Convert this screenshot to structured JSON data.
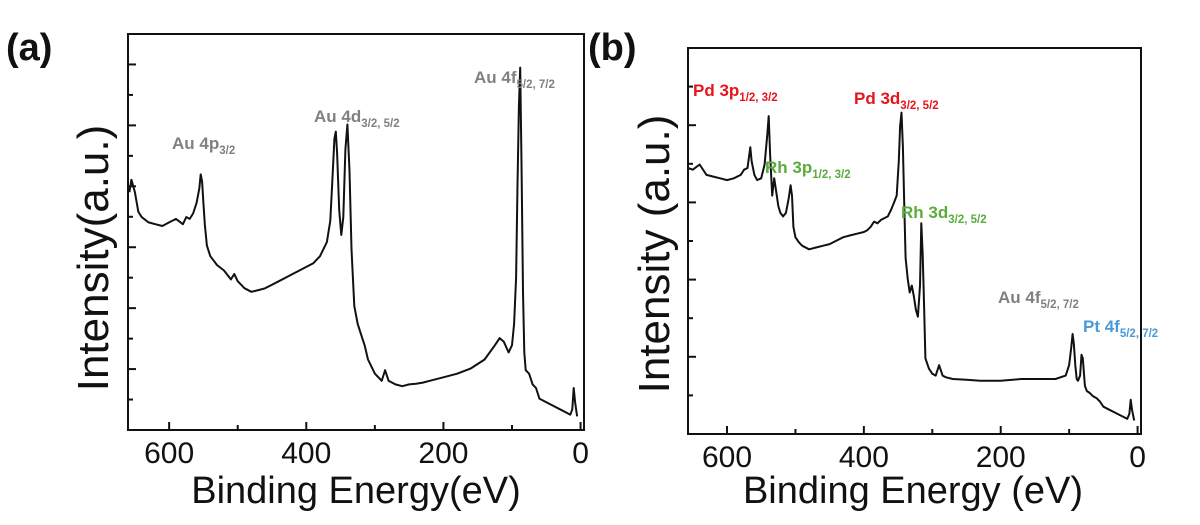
{
  "colors": {
    "line": "#111111",
    "gray": "#808080",
    "red": "#e8141c",
    "green": "#5aac3c",
    "blue": "#4a9ad6"
  },
  "chart_data": [
    {
      "type": "line",
      "panel_label": "(a)",
      "xlabel": "Binding Energy(eV)",
      "ylabel": "Intensity(a.u.)",
      "xlim": [
        660,
        -5
      ],
      "ylim": [
        0,
        100
      ],
      "xticks": [
        600,
        400,
        200,
        0
      ],
      "xtick_labels": [
        "600",
        "400",
        "200",
        "0"
      ],
      "grid": false,
      "series": [
        {
          "x": [
            658,
            655,
            650,
            645,
            640,
            630,
            620,
            610,
            600,
            590,
            580,
            575,
            570,
            565,
            560,
            556,
            554,
            552,
            550,
            548,
            545,
            540,
            530,
            520,
            510,
            505,
            500,
            495,
            490,
            480,
            470,
            460,
            450,
            440,
            430,
            420,
            410,
            400,
            390,
            380,
            370,
            365,
            362,
            359,
            357,
            355,
            352,
            349,
            346,
            343,
            340,
            337,
            334,
            330,
            325,
            320,
            315,
            310,
            300,
            290,
            285,
            280,
            270,
            260,
            250,
            240,
            230,
            220,
            200,
            180,
            160,
            140,
            125,
            118,
            112,
            105,
            100,
            97,
            94,
            92,
            90,
            88,
            86,
            84,
            82,
            80,
            75,
            70,
            65,
            60,
            50,
            40,
            30,
            20,
            15,
            12,
            10,
            8,
            5
          ],
          "y": [
            64,
            67.5,
            64,
            58.5,
            57,
            55.5,
            55,
            54.5,
            55.5,
            56.5,
            55,
            57,
            56.5,
            58,
            61,
            65,
            69,
            67,
            61,
            55,
            49,
            46,
            43.5,
            42,
            39.5,
            41,
            39,
            38,
            37,
            36,
            36.5,
            37,
            38,
            39,
            40,
            41,
            42,
            43,
            44,
            46,
            50,
            56,
            67,
            79,
            81,
            75,
            59,
            52,
            57,
            76,
            83,
            70,
            48,
            32,
            27,
            24,
            21,
            17,
            13,
            11,
            14,
            11,
            10,
            9.5,
            10,
            10.2,
            10.5,
            11,
            12,
            13,
            14.5,
            17,
            21,
            23,
            22,
            19,
            21,
            27,
            40,
            66,
            88,
            99,
            70,
            36,
            19,
            14,
            13,
            10,
            9,
            6,
            5,
            4,
            3,
            2,
            1.5,
            3,
            9,
            5,
            1
          ]
        }
      ],
      "annotations": [
        {
          "main": "Au 4p",
          "sub": "3/2",
          "color": "gray"
        },
        {
          "main": "Au 4d",
          "sub": "3/2, 5/2",
          "color": "gray"
        },
        {
          "main": "Au 4f",
          "sub": "5/2, 7/2",
          "color": "gray"
        }
      ]
    },
    {
      "type": "line",
      "panel_label": "(b)",
      "xlabel": "Binding Energy (eV)",
      "ylabel": "Intensity (a.u.)",
      "xlim": [
        657,
        -5
      ],
      "ylim": [
        0,
        100
      ],
      "xticks": [
        600,
        400,
        200,
        0
      ],
      "xtick_labels": [
        "600",
        "400",
        "200",
        "0"
      ],
      "grid": false,
      "series": [
        {
          "x": [
            657,
            650,
            640,
            630,
            620,
            610,
            600,
            590,
            580,
            575,
            570,
            566,
            564,
            562,
            560,
            556,
            550,
            545,
            541,
            539,
            537,
            534,
            531,
            528,
            525,
            522,
            518,
            514,
            510,
            507,
            505,
            503,
            500,
            495,
            490,
            480,
            470,
            460,
            450,
            440,
            430,
            420,
            410,
            400,
            395,
            390,
            385,
            380,
            375,
            370,
            365,
            360,
            356,
            352,
            349,
            347,
            345,
            343,
            341,
            339,
            336,
            333,
            330,
            327,
            324,
            321,
            318,
            316,
            314,
            312,
            310,
            305,
            300,
            295,
            290,
            285,
            280,
            270,
            250,
            230,
            200,
            170,
            140,
            120,
            105,
            100,
            97,
            95,
            93,
            91,
            89,
            87,
            84,
            82,
            80,
            77,
            74,
            70,
            65,
            60,
            55,
            50,
            40,
            30,
            20,
            15,
            12,
            10,
            8,
            5
          ],
          "y": [
            74,
            73.5,
            75,
            72,
            71.5,
            71,
            70.5,
            71,
            72,
            73.5,
            74,
            80,
            76,
            74,
            72,
            70.5,
            71,
            75,
            84,
            89,
            78,
            66,
            71,
            67,
            63,
            61,
            60,
            61,
            65,
            69,
            66,
            57,
            54,
            52.5,
            51.5,
            50.5,
            51,
            51.5,
            52,
            53,
            54,
            54.5,
            55,
            55.5,
            56,
            57,
            58.5,
            58,
            59,
            59.5,
            60,
            62,
            64,
            66,
            76,
            86,
            90,
            80,
            64,
            48,
            42,
            38,
            40,
            37,
            33,
            31,
            40,
            58,
            49,
            34,
            19,
            16,
            14.5,
            14,
            17,
            14,
            13.5,
            13,
            12.8,
            12.5,
            12.5,
            13,
            13,
            13,
            14,
            17,
            22,
            26,
            23,
            17,
            13,
            12.5,
            14,
            20,
            19,
            11,
            9.5,
            9,
            8,
            7.5,
            6.5,
            5,
            4,
            3,
            2,
            1.5,
            3,
            7,
            4,
            1
          ]
        }
      ],
      "annotations": [
        {
          "main": "Pd 3p",
          "sub": "1/2, 3/2",
          "color": "red"
        },
        {
          "main": "Pd 3d",
          "sub": "3/2, 5/2",
          "color": "red"
        },
        {
          "main": "Rh 3p",
          "sub": "1/2, 3/2",
          "color": "green"
        },
        {
          "main": "Rh 3d",
          "sub": "3/2, 5/2",
          "color": "green"
        },
        {
          "main": "Au 4f",
          "sub": "5/2, 7/2",
          "color": "gray"
        },
        {
          "main": "Pt 4f",
          "sub": "5/2, 7/2",
          "color": "blue"
        }
      ]
    }
  ]
}
